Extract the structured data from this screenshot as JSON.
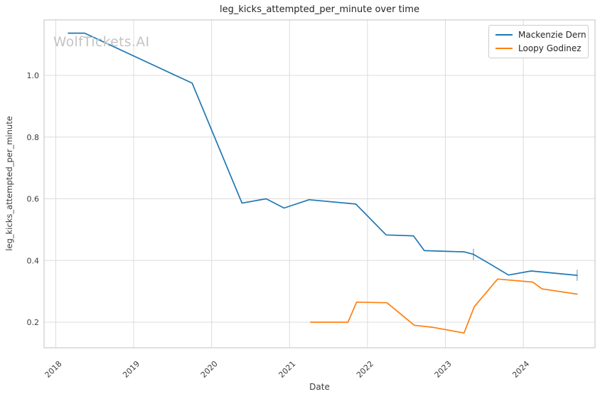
{
  "page": {
    "title": "leg_kicks_attempted_per_minute over time",
    "watermark": "WolfTickets.AI",
    "xlabel": "Date",
    "ylabel": "leg_kicks_attempted_per_minute"
  },
  "legend": {
    "position": "upper right",
    "items": [
      {
        "label": "Mackenzie Dern",
        "color": "#1f77b4"
      },
      {
        "label": "Loopy Godinez",
        "color": "#ff7f0e"
      }
    ]
  },
  "colors": {
    "background": "#ffffff",
    "grid": "#dcdcdc",
    "spine": "#cccccc",
    "tick_label": "#3b3b3b",
    "title": "#262626",
    "watermark": "#c3c3c3",
    "series_blue": "#1f77b4",
    "series_orange": "#ff7f0e"
  },
  "chart_data": {
    "type": "line",
    "title": "leg_kicks_attempted_per_minute over time",
    "xlabel": "Date",
    "ylabel": "leg_kicks_attempted_per_minute",
    "xlim": [
      2017.85,
      2024.92
    ],
    "ylim": [
      0.117,
      1.18
    ],
    "grid": true,
    "legend_position": "upper right",
    "xticks": [
      {
        "value": 2018,
        "label": "2018"
      },
      {
        "value": 2019,
        "label": "2019"
      },
      {
        "value": 2020,
        "label": "2020"
      },
      {
        "value": 2021,
        "label": "2021"
      },
      {
        "value": 2022,
        "label": "2022"
      },
      {
        "value": 2023,
        "label": "2023"
      },
      {
        "value": 2024,
        "label": "2024"
      }
    ],
    "yticks": [
      {
        "value": 0.2,
        "label": "0.2"
      },
      {
        "value": 0.4,
        "label": "0.4"
      },
      {
        "value": 0.6,
        "label": "0.6"
      },
      {
        "value": 0.8,
        "label": "0.8"
      },
      {
        "value": 1.0,
        "label": "1.0"
      }
    ],
    "series": [
      {
        "name": "Mackenzie Dern",
        "color": "#1f77b4",
        "points": [
          [
            2018.16,
            1.137
          ],
          [
            2018.37,
            1.137
          ],
          [
            2019.75,
            0.975
          ],
          [
            2020.39,
            0.586
          ],
          [
            2020.7,
            0.6
          ],
          [
            2020.93,
            0.57
          ],
          [
            2021.25,
            0.597
          ],
          [
            2021.85,
            0.583
          ],
          [
            2022.24,
            0.483
          ],
          [
            2022.59,
            0.48
          ],
          [
            2022.73,
            0.432
          ],
          [
            2023.24,
            0.428
          ],
          [
            2023.36,
            0.42
          ],
          [
            2023.55,
            0.392
          ],
          [
            2023.81,
            0.353
          ],
          [
            2024.1,
            0.366
          ],
          [
            2024.69,
            0.352
          ]
        ]
      },
      {
        "name": "Loopy Godinez",
        "color": "#ff7f0e",
        "points": [
          [
            2021.27,
            0.2
          ],
          [
            2021.75,
            0.2
          ],
          [
            2021.86,
            0.265
          ],
          [
            2022.25,
            0.263
          ],
          [
            2022.6,
            0.19
          ],
          [
            2022.85,
            0.183
          ],
          [
            2023.24,
            0.165
          ],
          [
            2023.37,
            0.25
          ],
          [
            2023.67,
            0.34
          ],
          [
            2024.12,
            0.33
          ],
          [
            2024.24,
            0.308
          ],
          [
            2024.69,
            0.291
          ]
        ]
      }
    ],
    "error_bars": [
      {
        "series": "Mackenzie Dern",
        "x": 2023.36,
        "y": 0.42,
        "half": 0.018
      },
      {
        "series": "Mackenzie Dern",
        "x": 2024.69,
        "y": 0.352,
        "half": 0.018
      }
    ]
  }
}
